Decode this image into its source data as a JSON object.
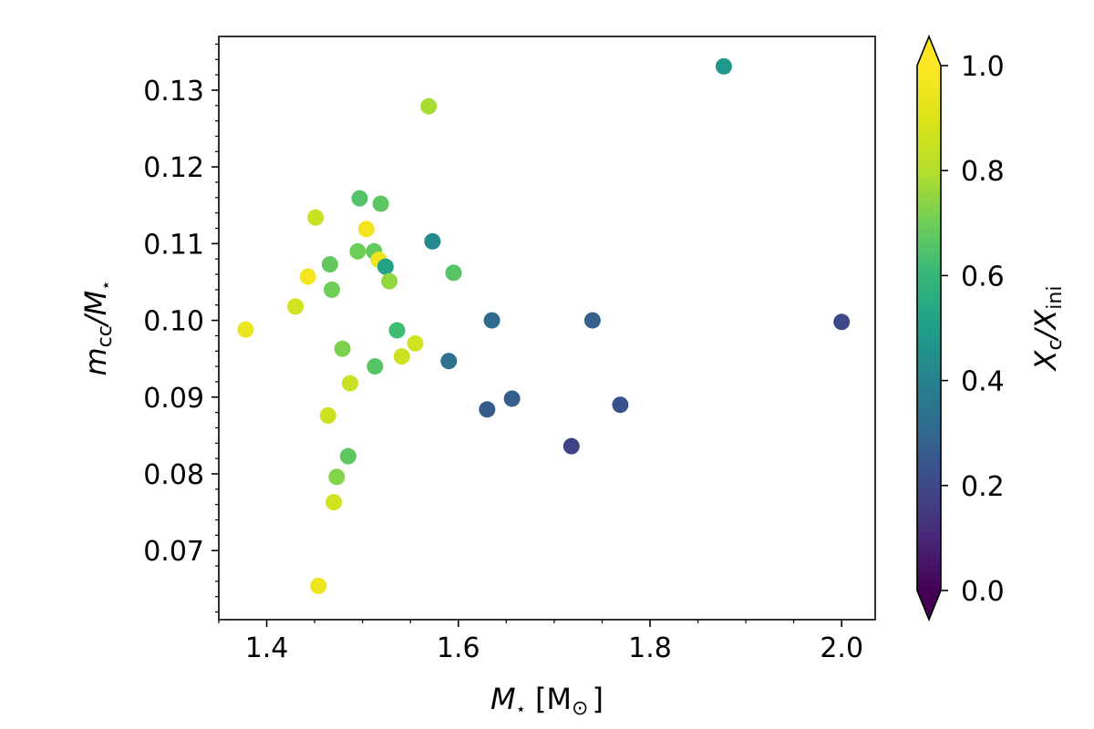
{
  "chart_data": {
    "type": "scatter",
    "xlabel": {
      "main": "M",
      "sub": "⋆",
      "unit": "[M",
      "unit_sub": "⊙",
      "close": "]"
    },
    "ylabel": {
      "a": "m",
      "a_sub": "cc",
      "slash": "/M",
      "b_sub": "⋆"
    },
    "colorbar_label": {
      "a": "X",
      "a_sub": "c",
      "slash": "/X",
      "b_sub": "ini"
    },
    "xlim": [
      1.35,
      2.035
    ],
    "ylim": [
      0.061,
      0.137
    ],
    "x_ticks": [
      1.4,
      1.6,
      1.8,
      2.0
    ],
    "x_tick_labels": [
      "1.4",
      "1.6",
      "1.8",
      "2.0"
    ],
    "y_ticks": [
      0.07,
      0.08,
      0.09,
      0.1,
      0.11,
      0.12,
      0.13
    ],
    "y_tick_labels": [
      "0.07",
      "0.08",
      "0.09",
      "0.10",
      "0.11",
      "0.12",
      "0.13"
    ],
    "colorbar_range": [
      0.0,
      1.0
    ],
    "colorbar_ticks": [
      0.0,
      0.2,
      0.4,
      0.6,
      0.8,
      1.0
    ],
    "colorbar_tick_labels": [
      "0.0",
      "0.2",
      "0.4",
      "0.6",
      "0.8",
      "1.0"
    ],
    "colormap": "viridis",
    "colorbar_extend": "both",
    "grid": false,
    "points": [
      {
        "x": 1.378,
        "y": 0.0988,
        "c": 0.95
      },
      {
        "x": 1.43,
        "y": 0.1018,
        "c": 0.87
      },
      {
        "x": 1.443,
        "y": 0.1057,
        "c": 0.97
      },
      {
        "x": 1.451,
        "y": 0.1134,
        "c": 0.85
      },
      {
        "x": 1.454,
        "y": 0.0654,
        "c": 0.95
      },
      {
        "x": 1.464,
        "y": 0.0876,
        "c": 0.86
      },
      {
        "x": 1.466,
        "y": 0.1073,
        "c": 0.68
      },
      {
        "x": 1.468,
        "y": 0.104,
        "c": 0.7
      },
      {
        "x": 1.47,
        "y": 0.0763,
        "c": 0.87
      },
      {
        "x": 1.473,
        "y": 0.0796,
        "c": 0.73
      },
      {
        "x": 1.479,
        "y": 0.0963,
        "c": 0.72
      },
      {
        "x": 1.485,
        "y": 0.0823,
        "c": 0.67
      },
      {
        "x": 1.487,
        "y": 0.0918,
        "c": 0.85
      },
      {
        "x": 1.495,
        "y": 0.109,
        "c": 0.7
      },
      {
        "x": 1.497,
        "y": 0.1159,
        "c": 0.65
      },
      {
        "x": 1.504,
        "y": 0.1119,
        "c": 0.97
      },
      {
        "x": 1.512,
        "y": 0.109,
        "c": 0.68
      },
      {
        "x": 1.513,
        "y": 0.094,
        "c": 0.66
      },
      {
        "x": 1.517,
        "y": 0.1079,
        "c": 0.95
      },
      {
        "x": 1.519,
        "y": 0.1152,
        "c": 0.67
      },
      {
        "x": 1.524,
        "y": 0.107,
        "c": 0.52
      },
      {
        "x": 1.528,
        "y": 0.1051,
        "c": 0.75
      },
      {
        "x": 1.536,
        "y": 0.0987,
        "c": 0.62
      },
      {
        "x": 1.541,
        "y": 0.0953,
        "c": 0.86
      },
      {
        "x": 1.555,
        "y": 0.097,
        "c": 0.87
      },
      {
        "x": 1.569,
        "y": 0.1279,
        "c": 0.78
      },
      {
        "x": 1.573,
        "y": 0.1103,
        "c": 0.42
      },
      {
        "x": 1.59,
        "y": 0.0947,
        "c": 0.33
      },
      {
        "x": 1.595,
        "y": 0.1062,
        "c": 0.66
      },
      {
        "x": 1.63,
        "y": 0.0884,
        "c": 0.26
      },
      {
        "x": 1.635,
        "y": 0.1,
        "c": 0.32
      },
      {
        "x": 1.656,
        "y": 0.0898,
        "c": 0.27
      },
      {
        "x": 1.718,
        "y": 0.0836,
        "c": 0.18
      },
      {
        "x": 1.74,
        "y": 0.1,
        "c": 0.27
      },
      {
        "x": 1.769,
        "y": 0.089,
        "c": 0.23
      },
      {
        "x": 1.877,
        "y": 0.1331,
        "c": 0.48
      },
      {
        "x": 2.0,
        "y": 0.0998,
        "c": 0.2
      }
    ]
  }
}
